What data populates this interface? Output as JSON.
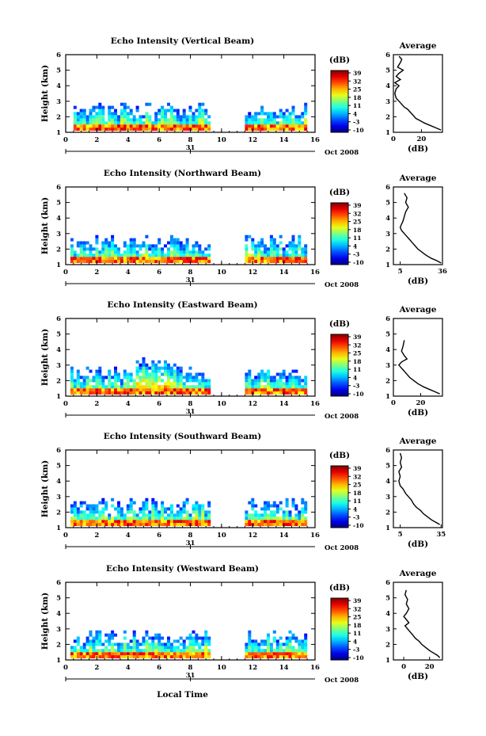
{
  "figure": {
    "date_label": "Oct 2008",
    "day_label": "31",
    "xlabel_bottom": "Local Time",
    "colorbar_unit": "(dB)",
    "colorbar_ticks": [
      "39",
      "32",
      "25",
      "18",
      "11",
      "4",
      "-3",
      "-10"
    ],
    "average_title": "Average",
    "average_xlabel": "(dB)"
  },
  "chart_data": [
    {
      "type": "heatmap",
      "title": "Echo Intensity (Vertical Beam)",
      "ylabel": "Height (km)",
      "xlim": [
        0,
        16
      ],
      "ylim": [
        1,
        6
      ],
      "xticks": [
        0,
        2,
        4,
        6,
        8,
        10,
        12,
        14,
        16
      ],
      "yticks": [
        1,
        2,
        3,
        4,
        5,
        6
      ],
      "colorbar_range": [
        -10,
        39
      ],
      "data_periods_hours": [
        [
          0.5,
          9.2
        ],
        [
          11.5,
          15.3
        ]
      ],
      "average_profile": {
        "xlim": [
          0,
          35
        ],
        "xticks": [
          0,
          20
        ],
        "points": [
          [
            4,
            5.9
          ],
          [
            6,
            5.7
          ],
          [
            5,
            5.5
          ],
          [
            3,
            5.2
          ],
          [
            7,
            5.0
          ],
          [
            4,
            4.8
          ],
          [
            2,
            4.6
          ],
          [
            5,
            4.4
          ],
          [
            1,
            4.2
          ],
          [
            4,
            4.0
          ],
          [
            2,
            3.8
          ],
          [
            1,
            3.5
          ],
          [
            2,
            3.2
          ],
          [
            4,
            3.0
          ],
          [
            6,
            2.8
          ],
          [
            8,
            2.6
          ],
          [
            10,
            2.5
          ],
          [
            12,
            2.3
          ],
          [
            14,
            2.1
          ],
          [
            16,
            1.9
          ],
          [
            19,
            1.75
          ],
          [
            22,
            1.6
          ],
          [
            26,
            1.45
          ],
          [
            30,
            1.3
          ],
          [
            34,
            1.15
          ]
        ]
      }
    },
    {
      "type": "heatmap",
      "title": "Echo Intensity (Northward Beam)",
      "ylabel": "Height (km)",
      "xlim": [
        0,
        16
      ],
      "ylim": [
        1,
        6
      ],
      "xticks": [
        0,
        2,
        4,
        6,
        8,
        10,
        12,
        14,
        16
      ],
      "yticks": [
        1,
        2,
        3,
        4,
        5,
        6
      ],
      "colorbar_range": [
        -10,
        39
      ],
      "data_periods_hours": [
        [
          0.3,
          9.2
        ],
        [
          11.5,
          15.3
        ]
      ],
      "average_profile": {
        "xlim": [
          0,
          36
        ],
        "xticks": [
          5,
          36
        ],
        "points": [
          [
            8,
            5.6
          ],
          [
            10,
            5.3
          ],
          [
            9,
            5.0
          ],
          [
            11,
            4.7
          ],
          [
            9,
            4.4
          ],
          [
            8,
            4.1
          ],
          [
            7,
            3.8
          ],
          [
            6,
            3.6
          ],
          [
            5,
            3.4
          ],
          [
            6,
            3.2
          ],
          [
            8,
            3.0
          ],
          [
            10,
            2.8
          ],
          [
            12,
            2.6
          ],
          [
            14,
            2.4
          ],
          [
            16,
            2.2
          ],
          [
            18,
            2.0
          ],
          [
            21,
            1.8
          ],
          [
            24,
            1.6
          ],
          [
            28,
            1.4
          ],
          [
            32,
            1.25
          ],
          [
            35,
            1.1
          ]
        ]
      }
    },
    {
      "type": "heatmap",
      "title": "Echo Intensity (Eastward Beam)",
      "ylabel": "Height (km)",
      "xlim": [
        0,
        16
      ],
      "ylim": [
        1,
        6
      ],
      "xticks": [
        0,
        2,
        4,
        6,
        8,
        10,
        12,
        14,
        16
      ],
      "yticks": [
        1,
        2,
        3,
        4,
        5,
        6
      ],
      "colorbar_range": [
        -10,
        39
      ],
      "data_periods_hours": [
        [
          0.3,
          9.2
        ],
        [
          11.5,
          15.3
        ]
      ],
      "average_profile": {
        "xlim": [
          0,
          36
        ],
        "xticks": [
          0,
          20
        ],
        "points": [
          [
            8,
            4.6
          ],
          [
            7,
            4.2
          ],
          [
            6,
            3.9
          ],
          [
            8,
            3.6
          ],
          [
            10,
            3.4
          ],
          [
            6,
            3.2
          ],
          [
            4,
            3.0
          ],
          [
            6,
            2.8
          ],
          [
            8,
            2.6
          ],
          [
            10,
            2.4
          ],
          [
            12,
            2.2
          ],
          [
            15,
            2.0
          ],
          [
            18,
            1.8
          ],
          [
            22,
            1.6
          ],
          [
            26,
            1.45
          ],
          [
            30,
            1.3
          ],
          [
            34,
            1.15
          ]
        ]
      }
    },
    {
      "type": "heatmap",
      "title": "Echo Intensity (Southward Beam)",
      "ylabel": "Height (km)",
      "xlim": [
        0,
        16
      ],
      "ylim": [
        1,
        6
      ],
      "xticks": [
        0,
        2,
        4,
        6,
        8,
        10,
        12,
        14,
        16
      ],
      "yticks": [
        1,
        2,
        3,
        4,
        5,
        6
      ],
      "colorbar_range": [
        -10,
        39
      ],
      "data_periods_hours": [
        [
          0.3,
          9.2
        ],
        [
          11.5,
          15.3
        ]
      ],
      "average_profile": {
        "xlim": [
          0,
          36
        ],
        "xticks": [
          5,
          35
        ],
        "points": [
          [
            5,
            5.8
          ],
          [
            6,
            5.5
          ],
          [
            5,
            5.2
          ],
          [
            6,
            4.9
          ],
          [
            4,
            4.6
          ],
          [
            5,
            4.3
          ],
          [
            4,
            4.0
          ],
          [
            5,
            3.7
          ],
          [
            7,
            3.5
          ],
          [
            9,
            3.2
          ],
          [
            11,
            3.0
          ],
          [
            13,
            2.8
          ],
          [
            15,
            2.5
          ],
          [
            17,
            2.3
          ],
          [
            20,
            2.1
          ],
          [
            22,
            1.9
          ],
          [
            25,
            1.7
          ],
          [
            28,
            1.5
          ],
          [
            31,
            1.35
          ],
          [
            34,
            1.2
          ]
        ]
      }
    },
    {
      "type": "heatmap",
      "title": "Echo Intensity (Westward Beam)",
      "ylabel": "Height (km)",
      "xlim": [
        0,
        16
      ],
      "ylim": [
        1,
        6
      ],
      "xticks": [
        0,
        2,
        4,
        6,
        8,
        10,
        12,
        14,
        16
      ],
      "yticks": [
        1,
        2,
        3,
        4,
        5,
        6
      ],
      "colorbar_range": [
        -10,
        39
      ],
      "data_periods_hours": [
        [
          0.3,
          9.2
        ],
        [
          11.5,
          15.3
        ]
      ],
      "average_profile": {
        "xlim": [
          -8,
          30
        ],
        "xticks": [
          0,
          20
        ],
        "points": [
          [
            2,
            5.5
          ],
          [
            1,
            5.2
          ],
          [
            3,
            4.9
          ],
          [
            2,
            4.6
          ],
          [
            4,
            4.3
          ],
          [
            2,
            4.0
          ],
          [
            0,
            3.8
          ],
          [
            2,
            3.6
          ],
          [
            4,
            3.4
          ],
          [
            1,
            3.2
          ],
          [
            3,
            3.0
          ],
          [
            5,
            2.8
          ],
          [
            7,
            2.6
          ],
          [
            9,
            2.4
          ],
          [
            12,
            2.2
          ],
          [
            14,
            2.0
          ],
          [
            17,
            1.8
          ],
          [
            20,
            1.6
          ],
          [
            23,
            1.45
          ],
          [
            26,
            1.3
          ],
          [
            28,
            1.15
          ]
        ]
      }
    }
  ]
}
